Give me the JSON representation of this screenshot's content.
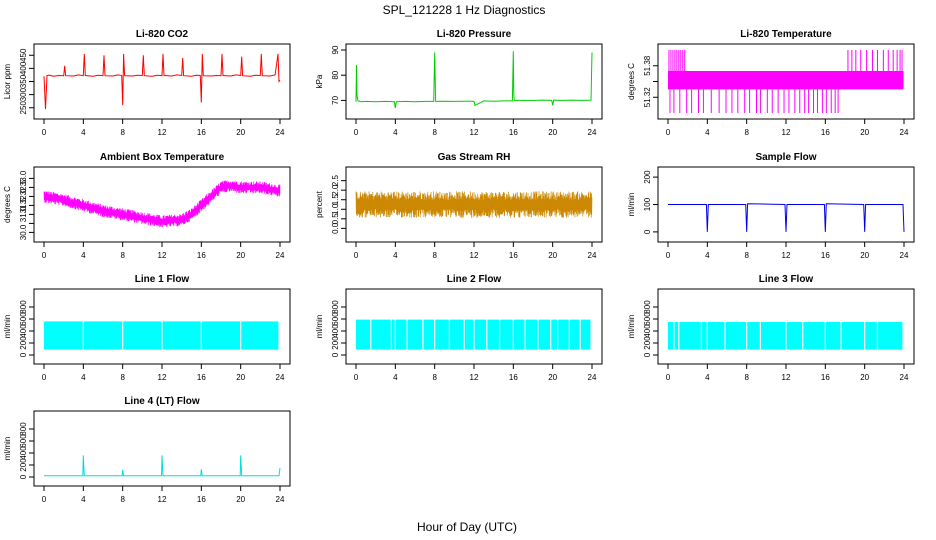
{
  "figure": {
    "title": "SPL_121228  1 Hz Diagnostics",
    "xlabel": "Hour of Day (UTC)"
  },
  "chart_data": [
    {
      "id": "co2",
      "type": "line",
      "title": "Li-820 CO2",
      "ylabel": "Licor ppm",
      "color": "#ff0000",
      "xlim": [
        0,
        24
      ],
      "ylim": [
        230,
        470
      ],
      "xticks": [
        0,
        4,
        8,
        12,
        16,
        20,
        24
      ],
      "yticks": [
        250,
        300,
        350,
        400,
        450
      ],
      "ytick_labels": [
        "250",
        "300",
        "350",
        "400",
        "450"
      ],
      "x": [
        0.0,
        0.15,
        0.3,
        0.5,
        1.0,
        1.5,
        2.0,
        2.1,
        2.2,
        3.0,
        3.5,
        4.0,
        4.1,
        4.2,
        5.0,
        5.5,
        6.0,
        6.1,
        6.2,
        7.0,
        7.5,
        7.9,
        8.0,
        8.1,
        8.2,
        9.0,
        9.5,
        10.0,
        10.1,
        10.2,
        11.0,
        11.5,
        12.0,
        12.1,
        12.2,
        13.0,
        13.5,
        14.0,
        14.1,
        14.2,
        15.0,
        15.5,
        15.9,
        16.0,
        16.1,
        16.2,
        17.0,
        17.5,
        18.0,
        18.1,
        18.2,
        19.0,
        19.5,
        20.0,
        20.1,
        20.2,
        21.0,
        21.5,
        22.0,
        22.1,
        22.2,
        23.0,
        23.5,
        23.8,
        23.9,
        24.0
      ],
      "y": [
        370,
        245,
        372,
        374,
        370,
        373,
        372,
        410,
        372,
        371,
        375,
        372,
        455,
        373,
        370,
        374,
        372,
        450,
        372,
        371,
        375,
        373,
        260,
        455,
        372,
        371,
        374,
        373,
        450,
        372,
        370,
        374,
        372,
        455,
        373,
        371,
        375,
        373,
        440,
        372,
        370,
        374,
        373,
        270,
        455,
        372,
        371,
        373,
        372,
        455,
        373,
        371,
        375,
        373,
        445,
        372,
        370,
        374,
        373,
        455,
        372,
        371,
        375,
        455,
        350,
        355
      ]
    },
    {
      "id": "pressure",
      "type": "line",
      "title": "Li-820 Pressure",
      "ylabel": "kPa",
      "color": "#00cc00",
      "xlim": [
        0,
        24
      ],
      "ylim": [
        65,
        90
      ],
      "xticks": [
        0,
        4,
        8,
        12,
        16,
        20,
        24
      ],
      "yticks": [
        70,
        80,
        90
      ],
      "ytick_labels": [
        "70",
        "80",
        "90"
      ],
      "x": [
        0.0,
        0.05,
        0.1,
        0.2,
        0.5,
        1.0,
        2.0,
        3.0,
        3.9,
        4.0,
        4.1,
        5.0,
        6.0,
        7.0,
        7.9,
        8.0,
        8.1,
        9.0,
        10.0,
        11.0,
        12.0,
        12.1,
        13.0,
        14.0,
        15.0,
        15.9,
        16.0,
        16.05,
        16.1,
        17.0,
        18.0,
        19.0,
        19.9,
        20.0,
        20.1,
        21.0,
        22.0,
        23.0,
        23.9,
        24.0
      ],
      "y": [
        69.5,
        84,
        72,
        69.8,
        69.5,
        69.6,
        69.5,
        69.6,
        69.5,
        67,
        69.5,
        69.6,
        69.5,
        69.6,
        69.6,
        89,
        69.6,
        69.7,
        69.6,
        69.7,
        69.7,
        68,
        69.8,
        69.7,
        69.8,
        69.8,
        89.5,
        72,
        70.0,
        70.0,
        70.0,
        70.1,
        70.0,
        68,
        70.1,
        70.0,
        70.1,
        70.0,
        70.1,
        89
      ]
    },
    {
      "id": "licor_temp",
      "type": "band",
      "title": "Li-820 Temperature",
      "ylabel": "degrees C",
      "color": "#ff00ff",
      "xlim": [
        0,
        24
      ],
      "ylim": [
        51.29,
        51.41
      ],
      "xticks": [
        0,
        4,
        8,
        12,
        16,
        20,
        24
      ],
      "yticks": [
        51.32,
        51.35,
        51.38
      ],
      "ytick_labels": [
        "51.32",
        "",
        "51.38"
      ],
      "band_low": 51.335,
      "band_high": 51.37,
      "spikes_up_x": [
        0.1,
        0.3,
        0.5,
        0.7,
        0.9,
        1.1,
        1.3,
        1.5,
        1.7,
        18.3,
        18.7,
        19.1,
        19.6,
        20.2,
        20.8,
        21.3,
        21.9,
        22.4,
        22.9,
        23.3,
        23.6,
        23.8
      ],
      "spikes_down_x": [
        0.2,
        0.6,
        1.2,
        1.9,
        2.4,
        3.1,
        3.6,
        4.4,
        5.2,
        5.9,
        6.5,
        7.1,
        7.8,
        8.3,
        9.0,
        9.4,
        10.1,
        10.6,
        11.2,
        11.8,
        12.3,
        12.9,
        13.4,
        13.9,
        14.3,
        14.8,
        15.2,
        15.7,
        16.1,
        16.6,
        17.0,
        17.3
      ]
    },
    {
      "id": "box_temp",
      "type": "noisy",
      "title": "Ambient Box Temperature",
      "ylabel": "degrees C",
      "color": "#ff00ff",
      "xlim": [
        0,
        24
      ],
      "ylim": [
        29.8,
        33.3
      ],
      "xticks": [
        0,
        4,
        8,
        12,
        16,
        20,
        24
      ],
      "yticks": [
        30.0,
        30.5,
        31.0,
        31.5,
        32.0,
        32.5,
        33.0
      ],
      "ytick_labels": [
        "30.0",
        "",
        "31.0",
        "31.5",
        "32.0",
        "32.5",
        "33.0"
      ],
      "x": [
        0,
        2,
        4,
        6,
        8,
        10,
        12,
        14,
        15,
        16,
        17,
        18,
        19,
        20,
        22,
        24
      ],
      "y": [
        32.0,
        31.8,
        31.5,
        31.2,
        31.0,
        30.8,
        30.6,
        30.7,
        31.0,
        31.5,
        32.0,
        32.5,
        32.6,
        32.5,
        32.5,
        32.3
      ],
      "amp": 0.7
    },
    {
      "id": "rh",
      "type": "noisy",
      "title": "Gas Stream RH",
      "ylabel": "percent",
      "color": "#cc8800",
      "accent": "#dd9900",
      "xlim": [
        0,
        24
      ],
      "ylim": [
        -0.4,
        2.9
      ],
      "xticks": [
        0,
        4,
        8,
        12,
        16,
        20,
        24
      ],
      "yticks": [
        0.0,
        0.5,
        1.0,
        1.5,
        2.0,
        2.5
      ],
      "ytick_labels": [
        "0.0",
        "0.5",
        "1.0",
        "1.5",
        "2.0",
        "2.5"
      ],
      "x": [
        0,
        6,
        12,
        18,
        24
      ],
      "y": [
        1.25,
        1.25,
        1.25,
        1.25,
        1.25
      ],
      "amp": 1.4
    },
    {
      "id": "sample_flow",
      "type": "line",
      "title": "Sample Flow",
      "ylabel": "ml/min",
      "color": "#0000ee",
      "xlim": [
        0,
        24
      ],
      "ylim": [
        -15,
        215
      ],
      "xticks": [
        0,
        4,
        8,
        12,
        16,
        20,
        24
      ],
      "yticks": [
        0,
        100,
        200
      ],
      "ytick_labels": [
        "0",
        "100",
        "200"
      ],
      "x": [
        0,
        3.9,
        4.0,
        4.1,
        7.9,
        8.0,
        8.1,
        11.9,
        12.0,
        12.1,
        15.9,
        16.0,
        16.1,
        19.9,
        20.0,
        20.1,
        23.9,
        24.0
      ],
      "y": [
        100,
        100,
        0,
        100,
        100,
        0,
        103,
        100,
        0,
        100,
        100,
        0,
        103,
        100,
        0,
        100,
        100,
        0
      ]
    },
    {
      "id": "line1",
      "type": "band",
      "title": "Line 1 Flow",
      "ylabel": "ml/min",
      "color": "#00ffff",
      "xlim": [
        0,
        24
      ],
      "ylim": [
        -50,
        1000
      ],
      "xticks": [
        0,
        4,
        8,
        12,
        16,
        20,
        24
      ],
      "yticks": [
        0,
        200,
        400,
        600,
        800
      ],
      "ytick_labels": [
        "0",
        "200",
        "400",
        "600",
        "800"
      ],
      "band_low": 90,
      "band_high": 560,
      "gaps_x": [
        4.0,
        8.0,
        12.0,
        16.0,
        20.0,
        23.9
      ]
    },
    {
      "id": "line2",
      "type": "band",
      "title": "Line 2 Flow",
      "ylabel": "ml/min",
      "color": "#00ffff",
      "xlim": [
        0,
        24
      ],
      "ylim": [
        -50,
        1000
      ],
      "xticks": [
        0,
        4,
        8,
        12,
        16,
        20,
        24
      ],
      "yticks": [
        0,
        200,
        400,
        600,
        800
      ],
      "ytick_labels": [
        "0",
        "200",
        "400",
        "600",
        "800"
      ],
      "band_low": 90,
      "band_high": 590,
      "gaps_x": [
        1.5,
        3.6,
        4.0,
        5.2,
        6.8,
        8.0,
        9.5,
        11.0,
        12.0,
        13.3,
        14.6,
        16.0,
        17.2,
        18.5,
        19.8,
        20.5,
        21.7,
        22.8,
        23.9
      ]
    },
    {
      "id": "line3",
      "type": "band",
      "title": "Line 3 Flow",
      "ylabel": "ml/min",
      "color": "#00ffff",
      "xlim": [
        0,
        24
      ],
      "ylim": [
        -50,
        1000
      ],
      "xticks": [
        0,
        4,
        8,
        12,
        16,
        20,
        24
      ],
      "yticks": [
        0,
        200,
        400,
        600,
        800
      ],
      "ytick_labels": [
        "0",
        "200",
        "400",
        "600",
        "800"
      ],
      "band_low": 90,
      "band_high": 550,
      "gaps_x": [
        0.6,
        1.1,
        3.4,
        4.0,
        5.8,
        8.0,
        9.4,
        12.0,
        13.7,
        16.0,
        17.6,
        20.0,
        21.3,
        23.9
      ]
    },
    {
      "id": "line4",
      "type": "line",
      "title": "Line 4 (LT) Flow",
      "ylabel": "ml/min",
      "color": "#00dddd",
      "xlim": [
        0,
        24
      ],
      "ylim": [
        -50,
        1000
      ],
      "xticks": [
        0,
        4,
        8,
        12,
        16,
        20,
        24
      ],
      "yticks": [
        0,
        200,
        400,
        600,
        800
      ],
      "ytick_labels": [
        "0",
        "200",
        "400",
        "600",
        "800"
      ],
      "x": [
        0,
        3.95,
        4.0,
        4.1,
        7.95,
        8.0,
        8.1,
        11.95,
        12.0,
        12.1,
        15.95,
        16.0,
        16.1,
        19.95,
        20.0,
        20.1,
        23.9,
        24.0
      ],
      "y": [
        20,
        20,
        360,
        20,
        20,
        120,
        20,
        20,
        360,
        20,
        20,
        130,
        20,
        20,
        360,
        20,
        20,
        150
      ]
    }
  ]
}
